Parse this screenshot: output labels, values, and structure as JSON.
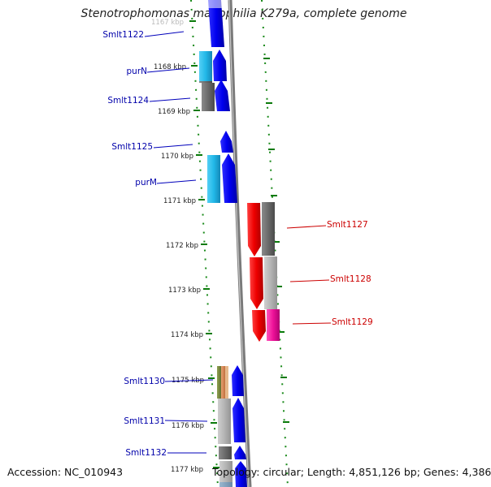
{
  "title": "Stenotrophomonas maltophilia K279a, complete genome",
  "footer": {
    "accession": "Accession: NC_010943",
    "topology": "Topology: circular; Length: 4,851,126 bp; Genes: 4,386"
  },
  "colors": {
    "forward_label": "#0000aa",
    "reverse_label": "#cc0000",
    "cds_blue": "#0000ee",
    "cds_cyan": "#22b8e8",
    "cds_gray": "#6a6a6a",
    "cds_lightgray": "#b4b4b4",
    "cds_red": "#ee0000",
    "cds_magenta": "#ee1199",
    "tick_green": "#008000",
    "backbone": "#8a8a8a"
  },
  "scale": {
    "unit": "kbp",
    "faded_label": "1167 kbp",
    "labels": [
      "1168 kbp",
      "1169 kbp",
      "1170 kbp",
      "1171 kbp",
      "1172 kbp",
      "1173 kbp",
      "1174 kbp",
      "1175 kbp",
      "1176 kbp",
      "1177 kbp"
    ]
  },
  "genes": {
    "forward": [
      "Smlt1122",
      "purN",
      "Smlt1124",
      "Smlt1125",
      "purM",
      "Smlt1130",
      "Smlt1131",
      "Smlt1132"
    ],
    "reverse": [
      "Smlt1127",
      "Smlt1128",
      "Smlt1129"
    ]
  }
}
